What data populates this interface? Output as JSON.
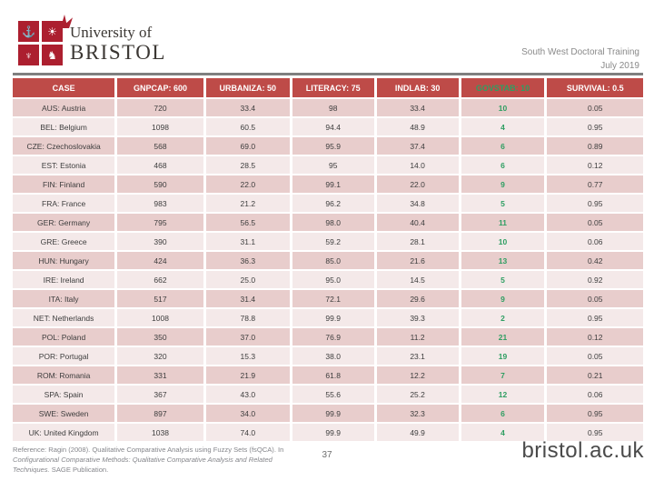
{
  "slide": {
    "logo": {
      "institution_line1": "University of",
      "institution_line2": "BRISTOL",
      "crest_glyphs": {
        "top_left": "⚓",
        "top_right": "☀",
        "bottom_left": "♆",
        "bottom_right": "♞"
      }
    },
    "header_right": {
      "line1": "South West Doctoral Training",
      "line2": "July 2019"
    },
    "footer": {
      "reference_prefix": "Reference: Ragin (2008). Qualitative Comparative Analysis using Fuzzy Sets (fsQCA). In ",
      "reference_italic": "Configurational Comparative Methods: Qualitative Comparative Analysis and Related Techniques.",
      "reference_suffix": " SAGE Publication.",
      "page_number": "37",
      "website": "bristol.ac.uk"
    }
  },
  "table": {
    "columns": [
      {
        "label": "CASE",
        "highlight": false
      },
      {
        "label": "GNPCAP: 600",
        "highlight": false
      },
      {
        "label": "URBANIZA: 50",
        "highlight": false
      },
      {
        "label": "LITERACY: 75",
        "highlight": false
      },
      {
        "label": "INDLAB: 30",
        "highlight": false
      },
      {
        "label": "GOVSTAB: 10",
        "highlight": true
      },
      {
        "label": "SURVIVAL: 0.5",
        "highlight": false
      }
    ],
    "highlight_column_index": 5,
    "rows": [
      [
        "AUS: Austria",
        "720",
        "33.4",
        "98",
        "33.4",
        "10",
        "0.05"
      ],
      [
        "BEL: Belgium",
        "1098",
        "60.5",
        "94.4",
        "48.9",
        "4",
        "0.95"
      ],
      [
        "CZE: Czechoslovakia",
        "568",
        "69.0",
        "95.9",
        "37.4",
        "6",
        "0.89"
      ],
      [
        "EST: Estonia",
        "468",
        "28.5",
        "95",
        "14.0",
        "6",
        "0.12"
      ],
      [
        "FIN: Finland",
        "590",
        "22.0",
        "99.1",
        "22.0",
        "9",
        "0.77"
      ],
      [
        "FRA: France",
        "983",
        "21.2",
        "96.2",
        "34.8",
        "5",
        "0.95"
      ],
      [
        "GER: Germany",
        "795",
        "56.5",
        "98.0",
        "40.4",
        "11",
        "0.05"
      ],
      [
        "GRE: Greece",
        "390",
        "31.1",
        "59.2",
        "28.1",
        "10",
        "0.06"
      ],
      [
        "HUN: Hungary",
        "424",
        "36.3",
        "85.0",
        "21.6",
        "13",
        "0.42"
      ],
      [
        "IRE: Ireland",
        "662",
        "25.0",
        "95.0",
        "14.5",
        "5",
        "0.92"
      ],
      [
        "ITA: Italy",
        "517",
        "31.4",
        "72.1",
        "29.6",
        "9",
        "0.05"
      ],
      [
        "NET: Netherlands",
        "1008",
        "78.8",
        "99.9",
        "39.3",
        "2",
        "0.95"
      ],
      [
        "POL: Poland",
        "350",
        "37.0",
        "76.9",
        "11.2",
        "21",
        "0.12"
      ],
      [
        "POR: Portugal",
        "320",
        "15.3",
        "38.0",
        "23.1",
        "19",
        "0.05"
      ],
      [
        "ROM: Romania",
        "331",
        "21.9",
        "61.8",
        "12.2",
        "7",
        "0.21"
      ],
      [
        "SPA: Spain",
        "367",
        "43.0",
        "55.6",
        "25.2",
        "12",
        "0.06"
      ],
      [
        "SWE: Sweden",
        "897",
        "34.0",
        "99.9",
        "32.3",
        "6",
        "0.95"
      ],
      [
        "UK: United Kingdom",
        "1038",
        "74.0",
        "99.9",
        "49.9",
        "4",
        "0.95"
      ]
    ]
  },
  "colors": {
    "header_red": "#BE4B48",
    "row_band_dark": "#E8CDCC",
    "row_band_light": "#F4E9E9",
    "highlight_green": "#2E9E62",
    "crest_red": "#AC1F2F",
    "muted_gray": "#8A8A8A",
    "rule_gray": "#7F7F7F"
  }
}
